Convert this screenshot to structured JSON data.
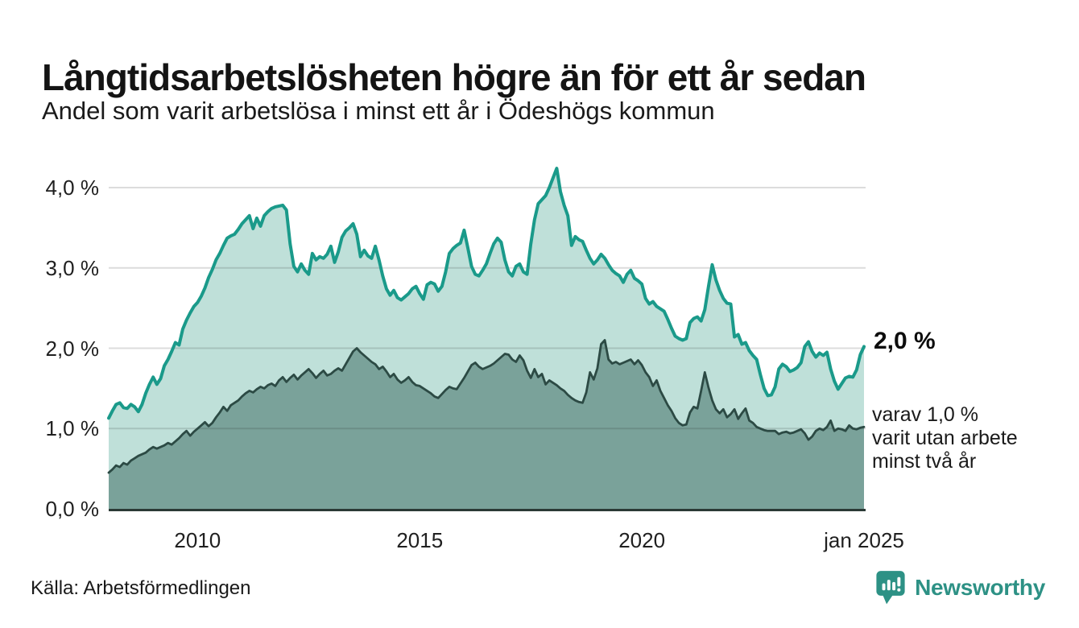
{
  "header": {
    "title": "Långtidsarbetslösheten högre än för ett år sedan",
    "subtitle": "Andel som varit arbetslösa i minst ett år i Ödeshögs kommun"
  },
  "annotations": {
    "end_value_label": "2,0 %",
    "sub_line1": "varav 1,0 %",
    "sub_line2": "varit utan arbete",
    "sub_line3": "minst två år"
  },
  "footer": {
    "source": "Källa: Arbetsförmedlingen",
    "brand_name": "Newsworthy"
  },
  "colors": {
    "line_total": "#1a9a8a",
    "fill_total": "#bfe0d9",
    "line_two_years": "#2c4a44",
    "fill_two_years": "#7aa29a",
    "axis_line": "#2b3a36",
    "gridline": "rgba(40,40,40,0.16)",
    "brand_teal": "#2d9185"
  },
  "chart_data": {
    "type": "area",
    "title": "Långtidsarbetslösheten högre än för ett år sedan",
    "subtitle": "Andel som varit arbetslösa i minst ett år i Ödeshögs kommun",
    "unit": "%",
    "x_start_year": 2008.0,
    "x_end_year": 2025.0,
    "frequency": "monthly",
    "ylim": [
      0,
      4.3
    ],
    "grid": true,
    "x_ticks": [
      {
        "t": 2010,
        "label": "2010"
      },
      {
        "t": 2015,
        "label": "2015"
      },
      {
        "t": 2020,
        "label": "2020"
      },
      {
        "t": 2025,
        "label": "jan 2025"
      }
    ],
    "y_ticks": [
      {
        "value": 0,
        "label": "0,0 %"
      },
      {
        "value": 1,
        "label": "1,0 %"
      },
      {
        "value": 2,
        "label": "2,0 %"
      },
      {
        "value": 3,
        "label": "3,0 %"
      },
      {
        "value": 4,
        "label": "4,0 %"
      }
    ],
    "series": [
      {
        "name": "Arbetslösa minst ett år",
        "end_value": 2.0,
        "values": [
          1.13,
          1.22,
          1.3,
          1.32,
          1.26,
          1.25,
          1.3,
          1.27,
          1.21,
          1.3,
          1.44,
          1.55,
          1.64,
          1.55,
          1.62,
          1.78,
          1.86,
          1.96,
          2.07,
          2.04,
          2.24,
          2.35,
          2.44,
          2.52,
          2.57,
          2.65,
          2.75,
          2.88,
          2.98,
          3.1,
          3.18,
          3.28,
          3.37,
          3.4,
          3.42,
          3.48,
          3.55,
          3.6,
          3.65,
          3.49,
          3.62,
          3.52,
          3.65,
          3.7,
          3.74,
          3.76,
          3.77,
          3.78,
          3.72,
          3.3,
          3.02,
          2.95,
          3.05,
          2.97,
          2.92,
          3.18,
          3.1,
          3.14,
          3.12,
          3.17,
          3.27,
          3.07,
          3.2,
          3.38,
          3.46,
          3.5,
          3.55,
          3.42,
          3.14,
          3.22,
          3.15,
          3.12,
          3.27,
          3.1,
          2.9,
          2.74,
          2.66,
          2.72,
          2.63,
          2.6,
          2.64,
          2.68,
          2.74,
          2.77,
          2.68,
          2.61,
          2.79,
          2.82,
          2.8,
          2.71,
          2.77,
          2.95,
          3.18,
          3.24,
          3.28,
          3.31,
          3.47,
          3.25,
          3.02,
          2.92,
          2.9,
          2.97,
          3.05,
          3.18,
          3.3,
          3.37,
          3.32,
          3.1,
          2.95,
          2.9,
          3.02,
          3.05,
          2.95,
          2.92,
          3.3,
          3.6,
          3.8,
          3.85,
          3.9,
          4.0,
          4.12,
          4.24,
          3.95,
          3.78,
          3.65,
          3.28,
          3.39,
          3.35,
          3.33,
          3.22,
          3.12,
          3.05,
          3.1,
          3.17,
          3.12,
          3.04,
          2.97,
          2.93,
          2.9,
          2.82,
          2.92,
          2.97,
          2.87,
          2.84,
          2.8,
          2.62,
          2.55,
          2.58,
          2.52,
          2.49,
          2.46,
          2.36,
          2.25,
          2.15,
          2.12,
          2.1,
          2.12,
          2.32,
          2.37,
          2.39,
          2.34,
          2.48,
          2.77,
          3.04,
          2.85,
          2.72,
          2.62,
          2.56,
          2.55,
          2.14,
          2.17,
          2.05,
          2.07,
          1.97,
          1.91,
          1.86,
          1.67,
          1.5,
          1.41,
          1.42,
          1.52,
          1.74,
          1.8,
          1.77,
          1.71,
          1.73,
          1.76,
          1.82,
          2.02,
          2.08,
          1.96,
          1.89,
          1.94,
          1.91,
          1.95,
          1.74,
          1.59,
          1.49,
          1.56,
          1.63,
          1.65,
          1.64,
          1.73,
          1.92,
          2.02
        ]
      },
      {
        "name": "varav utan arbete minst två år",
        "end_value": 1.0,
        "values": [
          0.45,
          0.49,
          0.54,
          0.52,
          0.57,
          0.55,
          0.6,
          0.63,
          0.66,
          0.68,
          0.7,
          0.74,
          0.77,
          0.75,
          0.77,
          0.79,
          0.82,
          0.8,
          0.84,
          0.88,
          0.93,
          0.97,
          0.91,
          0.96,
          1.0,
          1.04,
          1.08,
          1.03,
          1.07,
          1.14,
          1.2,
          1.27,
          1.22,
          1.29,
          1.32,
          1.35,
          1.4,
          1.44,
          1.47,
          1.45,
          1.49,
          1.52,
          1.5,
          1.54,
          1.56,
          1.53,
          1.6,
          1.64,
          1.58,
          1.63,
          1.67,
          1.61,
          1.66,
          1.7,
          1.74,
          1.69,
          1.63,
          1.68,
          1.72,
          1.66,
          1.68,
          1.72,
          1.75,
          1.72,
          1.8,
          1.88,
          1.96,
          2.0,
          1.95,
          1.91,
          1.87,
          1.83,
          1.8,
          1.74,
          1.77,
          1.71,
          1.64,
          1.68,
          1.61,
          1.57,
          1.6,
          1.64,
          1.58,
          1.54,
          1.53,
          1.5,
          1.47,
          1.44,
          1.4,
          1.38,
          1.43,
          1.48,
          1.52,
          1.5,
          1.49,
          1.56,
          1.63,
          1.71,
          1.79,
          1.82,
          1.77,
          1.74,
          1.76,
          1.78,
          1.81,
          1.85,
          1.89,
          1.93,
          1.92,
          1.86,
          1.83,
          1.91,
          1.85,
          1.72,
          1.63,
          1.74,
          1.64,
          1.68,
          1.55,
          1.6,
          1.57,
          1.54,
          1.5,
          1.47,
          1.42,
          1.38,
          1.35,
          1.33,
          1.32,
          1.45,
          1.7,
          1.61,
          1.75,
          2.05,
          2.1,
          1.86,
          1.81,
          1.83,
          1.8,
          1.82,
          1.84,
          1.86,
          1.8,
          1.85,
          1.79,
          1.7,
          1.64,
          1.53,
          1.6,
          1.47,
          1.38,
          1.29,
          1.22,
          1.13,
          1.07,
          1.04,
          1.05,
          1.2,
          1.27,
          1.25,
          1.47,
          1.7,
          1.51,
          1.35,
          1.24,
          1.19,
          1.24,
          1.14,
          1.18,
          1.24,
          1.12,
          1.19,
          1.25,
          1.1,
          1.07,
          1.02,
          1.0,
          0.98,
          0.97,
          0.97,
          0.97,
          0.93,
          0.95,
          0.96,
          0.94,
          0.95,
          0.97,
          0.99,
          0.94,
          0.86,
          0.9,
          0.97,
          1.0,
          0.98,
          1.02,
          1.1,
          0.97,
          1.0,
          0.99,
          0.97,
          1.04,
          1.0,
          0.99,
          1.01,
          1.02
        ]
      }
    ]
  }
}
